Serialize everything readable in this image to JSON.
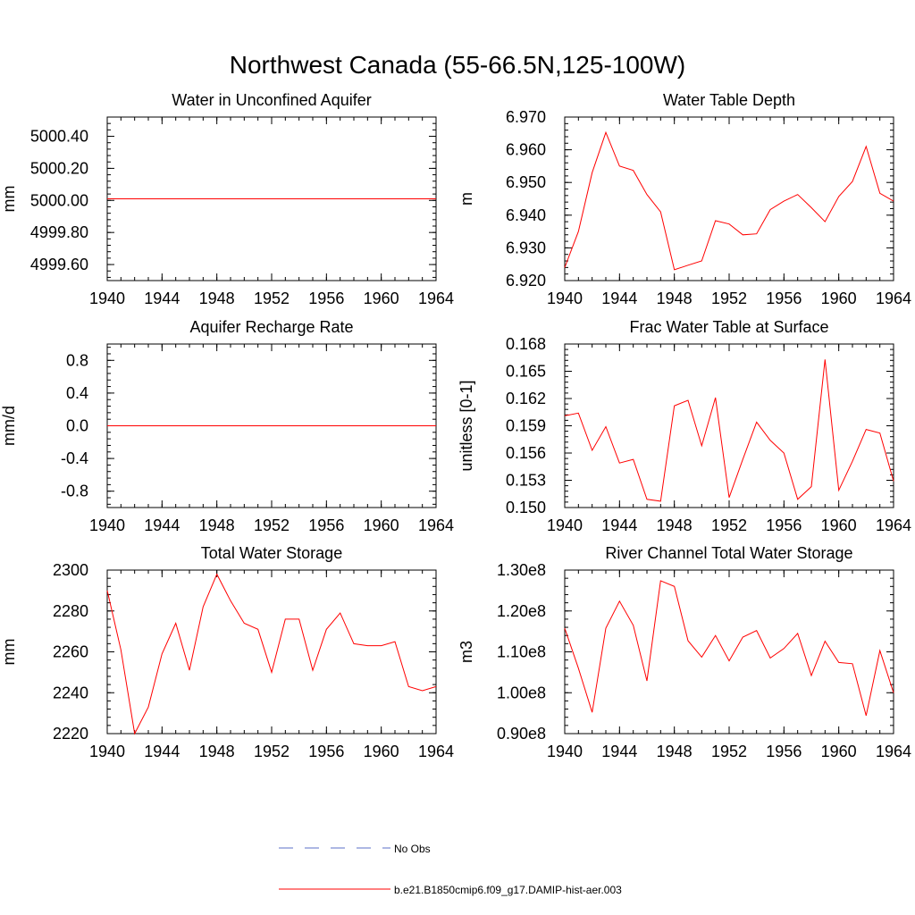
{
  "figure": {
    "title": "Northwest Canada (55-66.5N,125-100W)"
  },
  "legend": {
    "entries": [
      {
        "label": "No Obs",
        "color": "#5b6fc7",
        "style": "dashed"
      },
      {
        "label": "b.e21.B1850cmip6.f09_g17.DAMIP-hist-aer.003",
        "color": "#ff0000",
        "style": "solid"
      }
    ]
  },
  "chart_data": [
    {
      "type": "line",
      "title": "Water in Unconfined Aquifer",
      "ylabel": "mm",
      "xlim": [
        1940,
        1964
      ],
      "ylim": [
        4999.5,
        5000.52
      ],
      "xticks": [
        1940,
        1944,
        1948,
        1952,
        1956,
        1960,
        1964
      ],
      "yticks": [
        4999.6,
        4999.8,
        5000.0,
        5000.2,
        5000.4
      ],
      "ytick_labels": [
        "4999.60",
        "4999.80",
        "5000.00",
        "5000.20",
        "5000.40"
      ],
      "series": [
        {
          "color": "#ff0000",
          "x": [
            1940,
            1941,
            1942,
            1943,
            1944,
            1945,
            1946,
            1947,
            1948,
            1949,
            1950,
            1951,
            1952,
            1953,
            1954,
            1955,
            1956,
            1957,
            1958,
            1959,
            1960,
            1961,
            1962,
            1963,
            1964
          ],
          "values": [
            5000.01,
            5000.01,
            5000.01,
            5000.01,
            5000.01,
            5000.01,
            5000.01,
            5000.01,
            5000.01,
            5000.01,
            5000.01,
            5000.01,
            5000.01,
            5000.01,
            5000.01,
            5000.01,
            5000.01,
            5000.01,
            5000.01,
            5000.01,
            5000.01,
            5000.01,
            5000.01,
            5000.01,
            5000.01
          ]
        }
      ]
    },
    {
      "type": "line",
      "title": "Water Table Depth",
      "ylabel": "m",
      "xlim": [
        1940,
        1964
      ],
      "ylim": [
        6.92,
        6.97
      ],
      "xticks": [
        1940,
        1944,
        1948,
        1952,
        1956,
        1960,
        1964
      ],
      "yticks": [
        6.92,
        6.93,
        6.94,
        6.95,
        6.96,
        6.97
      ],
      "ytick_labels": [
        "6.920",
        "6.930",
        "6.940",
        "6.950",
        "6.960",
        "6.970"
      ],
      "series": [
        {
          "color": "#ff0000",
          "x": [
            1940,
            1941,
            1942,
            1943,
            1944,
            1945,
            1946,
            1947,
            1948,
            1949,
            1950,
            1951,
            1952,
            1953,
            1954,
            1955,
            1956,
            1957,
            1958,
            1959,
            1960,
            1961,
            1962,
            1963,
            1964
          ],
          "values": [
            6.924,
            6.935,
            6.953,
            6.9653,
            6.955,
            6.9537,
            6.9463,
            6.941,
            6.9233,
            6.9247,
            6.926,
            6.9383,
            6.9373,
            6.934,
            6.9343,
            6.9417,
            6.9443,
            6.9463,
            6.9423,
            6.938,
            6.9457,
            6.9503,
            6.961,
            6.9467,
            6.9443
          ]
        }
      ]
    },
    {
      "type": "line",
      "title": "Aquifer Recharge Rate",
      "ylabel": "mm/d",
      "xlim": [
        1940,
        1964
      ],
      "ylim": [
        -1.0,
        1.0
      ],
      "xticks": [
        1940,
        1944,
        1948,
        1952,
        1956,
        1960,
        1964
      ],
      "yticks": [
        -0.8,
        -0.4,
        0.0,
        0.4,
        0.8
      ],
      "ytick_labels": [
        "-0.8",
        "-0.4",
        "0.0",
        "0.4",
        "0.8"
      ],
      "series": [
        {
          "color": "#ff0000",
          "x": [
            1940,
            1941,
            1942,
            1943,
            1944,
            1945,
            1946,
            1947,
            1948,
            1949,
            1950,
            1951,
            1952,
            1953,
            1954,
            1955,
            1956,
            1957,
            1958,
            1959,
            1960,
            1961,
            1962,
            1963,
            1964
          ],
          "values": [
            0,
            0,
            0,
            0,
            0,
            0,
            0,
            0,
            0,
            0,
            0,
            0,
            0,
            0,
            0,
            0,
            0,
            0,
            0,
            0,
            0,
            0,
            0,
            0,
            0
          ]
        }
      ]
    },
    {
      "type": "line",
      "title": "Frac Water Table at Surface",
      "ylabel": "unitless [0-1]",
      "xlim": [
        1940,
        1964
      ],
      "ylim": [
        0.15,
        0.168
      ],
      "xticks": [
        1940,
        1944,
        1948,
        1952,
        1956,
        1960,
        1964
      ],
      "yticks": [
        0.15,
        0.153,
        0.156,
        0.159,
        0.162,
        0.165,
        0.168
      ],
      "ytick_labels": [
        "0.150",
        "0.153",
        "0.156",
        "0.159",
        "0.162",
        "0.165",
        "0.168"
      ],
      "series": [
        {
          "color": "#ff0000",
          "x": [
            1940,
            1941,
            1942,
            1943,
            1944,
            1945,
            1946,
            1947,
            1948,
            1949,
            1950,
            1951,
            1952,
            1953,
            1954,
            1955,
            1956,
            1957,
            1958,
            1959,
            1960,
            1961,
            1962,
            1963,
            1964
          ],
          "values": [
            0.1601,
            0.1604,
            0.1563,
            0.1589,
            0.1549,
            0.1553,
            0.1509,
            0.1507,
            0.1612,
            0.1618,
            0.1568,
            0.1621,
            0.1511,
            0.1553,
            0.1594,
            0.1574,
            0.156,
            0.1509,
            0.1523,
            0.1663,
            0.1519,
            0.1551,
            0.1586,
            0.1582,
            0.1529
          ]
        }
      ]
    },
    {
      "type": "line",
      "title": "Total Water Storage",
      "ylabel": "mm",
      "xlim": [
        1940,
        1964
      ],
      "ylim": [
        2220,
        2300
      ],
      "xticks": [
        1940,
        1944,
        1948,
        1952,
        1956,
        1960,
        1964
      ],
      "yticks": [
        2220,
        2240,
        2260,
        2280,
        2300
      ],
      "ytick_labels": [
        "2220",
        "2240",
        "2260",
        "2280",
        "2300"
      ],
      "series": [
        {
          "color": "#ff0000",
          "x": [
            1940,
            1941,
            1942,
            1943,
            1944,
            1945,
            1946,
            1947,
            1948,
            1949,
            1950,
            1951,
            1952,
            1953,
            1954,
            1955,
            1956,
            1957,
            1958,
            1959,
            1960,
            1961,
            1962,
            1963,
            1964
          ],
          "values": [
            2290,
            2261,
            2220,
            2233,
            2259,
            2274,
            2251,
            2282,
            2298,
            2285,
            2274,
            2271,
            2250,
            2276,
            2276,
            2251,
            2271,
            2279,
            2264,
            2263,
            2263,
            2265,
            2243,
            2241,
            2243
          ]
        }
      ]
    },
    {
      "type": "line",
      "title": "River Channel Total Water Storage",
      "ylabel": "m3",
      "xlim": [
        1940,
        1964
      ],
      "ylim": [
        90000000,
        130000000
      ],
      "xticks": [
        1940,
        1944,
        1948,
        1952,
        1956,
        1960,
        1964
      ],
      "yticks": [
        90000000,
        100000000,
        110000000,
        120000000,
        130000000
      ],
      "ytick_labels": [
        "0.90e8",
        "1.00e8",
        "1.10e8",
        "1.20e8",
        "1.30e8"
      ],
      "series": [
        {
          "color": "#ff0000",
          "x": [
            1940,
            1941,
            1942,
            1943,
            1944,
            1945,
            1946,
            1947,
            1948,
            1949,
            1950,
            1951,
            1952,
            1953,
            1954,
            1955,
            1956,
            1957,
            1958,
            1959,
            1960,
            1961,
            1962,
            1963,
            1964
          ],
          "values": [
            115800000,
            106000000,
            95200000,
            115800000,
            122400000,
            116500000,
            102900000,
            127400000,
            126000000,
            112700000,
            108700000,
            114000000,
            107800000,
            113600000,
            115200000,
            108500000,
            110800000,
            114500000,
            104200000,
            112600000,
            107400000,
            107100000,
            94400000,
            110300000,
            100000000
          ]
        }
      ]
    }
  ]
}
